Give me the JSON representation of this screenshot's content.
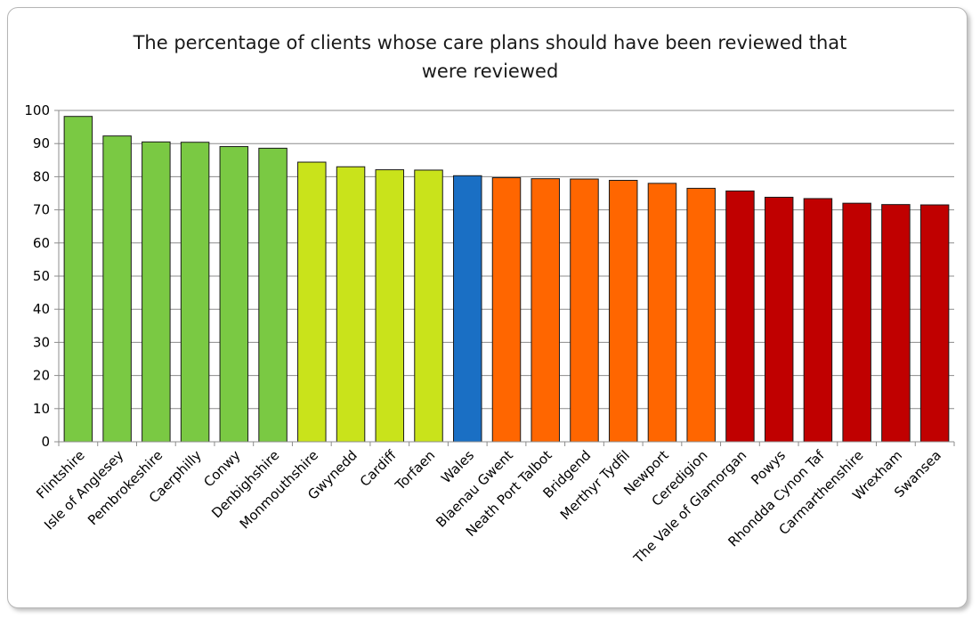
{
  "chart_data": {
    "type": "bar",
    "title_lines": [
      "The percentage of clients whose care plans should have been reviewed that",
      "were reviewed"
    ],
    "xlabel": "",
    "ylabel": "",
    "ylim": [
      0,
      100
    ],
    "yticks": [
      0,
      10,
      20,
      30,
      40,
      50,
      60,
      70,
      80,
      90,
      100
    ],
    "grid": true,
    "legend": "none",
    "categories": [
      "Flintshire",
      "Isle of Anglesey",
      "Pembrokeshire",
      "Caerphilly",
      "Conwy",
      "Denbighshire",
      "Monmouthshire",
      "Gwynedd",
      "Cardiff",
      "Torfaen",
      "Wales",
      "Blaenau Gwent",
      "Neath Port Talbot",
      "Bridgend",
      "Merthyr Tydfil",
      "Newport",
      "Ceredigion",
      "The Vale of Glamorgan",
      "Powys",
      "Rhondda Cynon Taf",
      "Carmarthenshire",
      "Wrexham",
      "Swansea"
    ],
    "values": [
      98.2,
      92.3,
      90.5,
      90.4,
      89.1,
      88.6,
      84.4,
      83.0,
      82.1,
      82.0,
      80.3,
      79.7,
      79.4,
      79.3,
      78.9,
      78.0,
      76.5,
      75.7,
      73.8,
      73.4,
      72.0,
      71.6,
      71.5
    ],
    "bar_colors": [
      "#7ac943",
      "#7ac943",
      "#7ac943",
      "#7ac943",
      "#7ac943",
      "#7ac943",
      "#c9e31b",
      "#c9e31b",
      "#c9e31b",
      "#c9e31b",
      "#1a6fc4",
      "#ff6600",
      "#ff6600",
      "#ff6600",
      "#ff6600",
      "#ff6600",
      "#ff6600",
      "#c00000",
      "#c00000",
      "#c00000",
      "#c00000",
      "#c00000",
      "#c00000"
    ]
  }
}
